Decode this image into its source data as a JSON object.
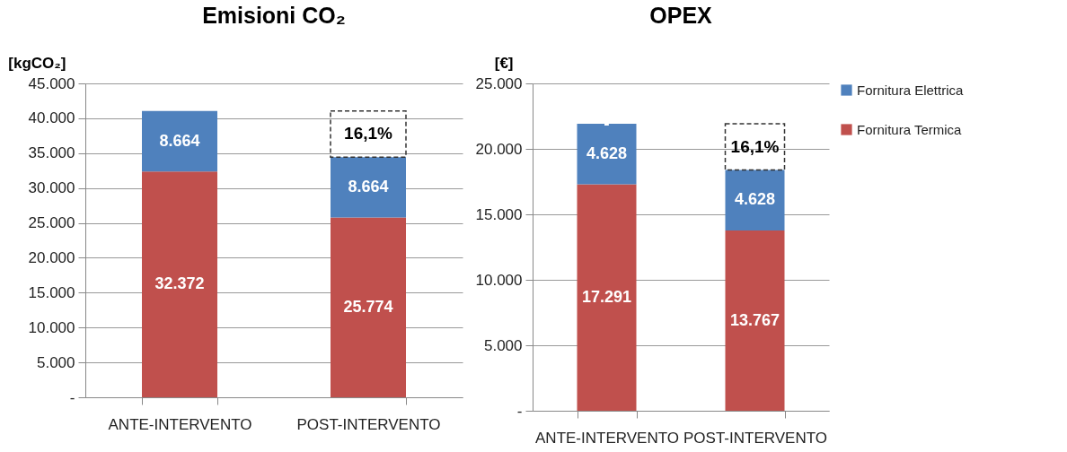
{
  "chart_data": [
    {
      "type": "bar",
      "title": "Emisioni CO₂",
      "ylabel": "[kgCO₂]",
      "categories": [
        "ANTE-INTERVENTO",
        "POST-INTERVENTO"
      ],
      "stacked": true,
      "grid": "y",
      "series": [
        {
          "color": "#c0504d",
          "values": [
            32372,
            25774
          ],
          "value_labels": [
            "32.372",
            "25.774"
          ]
        },
        {
          "color": "#4f81bd",
          "values": [
            8664,
            8664
          ],
          "value_labels": [
            "8.664",
            "8.664"
          ]
        }
      ],
      "ylim": [
        0,
        45000
      ],
      "yticks": [
        {
          "value": 0,
          "label": "-"
        },
        {
          "value": 5000,
          "label": "5.000"
        },
        {
          "value": 10000,
          "label": "10.000"
        },
        {
          "value": 15000,
          "label": "15.000"
        },
        {
          "value": 20000,
          "label": "20.000"
        },
        {
          "value": 25000,
          "label": "25.000"
        },
        {
          "value": 30000,
          "label": "30.000"
        },
        {
          "value": 35000,
          "label": "35.000"
        },
        {
          "value": 40000,
          "label": "40.000"
        },
        {
          "value": 45000,
          "label": "45.000"
        }
      ],
      "annotations": [
        "16,1%"
      ]
    },
    {
      "type": "bar",
      "title": "OPEX",
      "ylabel": "[€]",
      "categories": [
        "ANTE-INTERVENTO",
        "POST-INTERVENTO"
      ],
      "stacked": true,
      "grid": "y",
      "legend": "right",
      "series": [
        {
          "name": "Fornitura Termica",
          "color": "#c0504d",
          "values": [
            17291,
            13767
          ],
          "value_labels": [
            "17.291",
            "13.767"
          ]
        },
        {
          "name": "Fornitura Elettrica",
          "color": "#4f81bd",
          "values": [
            4628,
            4628
          ],
          "value_labels": [
            "4.628",
            "4.628"
          ]
        }
      ],
      "ylim": [
        0,
        25000
      ],
      "yticks": [
        {
          "value": 0,
          "label": "-"
        },
        {
          "value": 5000,
          "label": "5.000"
        },
        {
          "value": 10000,
          "label": "10.000"
        },
        {
          "value": 15000,
          "label": "15.000"
        },
        {
          "value": 20000,
          "label": "20.000"
        },
        {
          "value": 25000,
          "label": "25.000"
        }
      ],
      "annotations": [
        "16,1%",
        "-"
      ]
    }
  ]
}
